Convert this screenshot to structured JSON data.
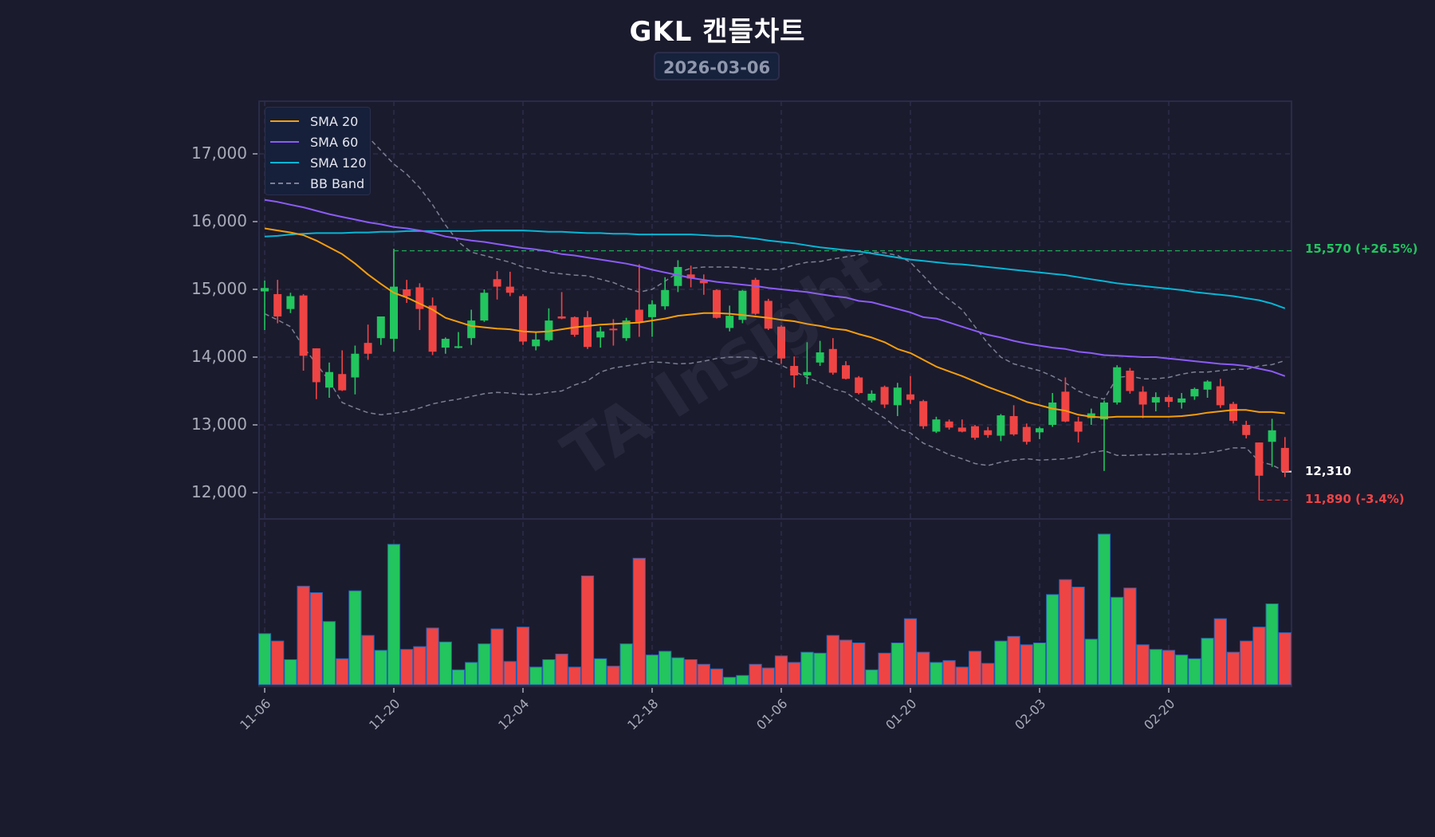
{
  "header": {
    "title": "GKL  캔들차트",
    "date": "2026-03-06"
  },
  "legend": [
    {
      "label": "SMA 20",
      "color": "#f59e0b",
      "style": "solid"
    },
    {
      "label": "SMA 60",
      "color": "#8b5cf6",
      "style": "solid"
    },
    {
      "label": "SMA 120",
      "color": "#06b6d4",
      "style": "solid"
    },
    {
      "label": "BB Band",
      "color": "#7c7f92",
      "style": "dashed"
    }
  ],
  "watermark": "TA Insight",
  "annotations": {
    "resistance": {
      "label": "15,570 (+26.5%)",
      "value": 15570,
      "color": "#22c55e"
    },
    "current": {
      "label": "12,310",
      "value": 12310,
      "color": "#ffffff"
    },
    "support": {
      "label": "11,890 (-3.4%)",
      "value": 11890,
      "color": "#ef4444"
    }
  },
  "colors": {
    "background": "#1b1b2e",
    "grid": "#2c2d4a",
    "up": "#22c55e",
    "down": "#ef4444",
    "axis_text": "#a9abb8"
  },
  "chart_data": {
    "type": "candlestick",
    "title": "GKL  캔들차트",
    "subtitle": "2026-03-06",
    "xlabel": "",
    "ylabel": "",
    "ylim": [
      11650,
      17800
    ],
    "y_ticks": [
      12000,
      13000,
      14000,
      15000,
      16000,
      17000
    ],
    "y_tick_labels": [
      "12,000",
      "13,000",
      "14,000",
      "15,000",
      "16,000",
      "17,000"
    ],
    "x_tick_labels": [
      "11-06",
      "11-20",
      "12-04",
      "12-18",
      "01-06",
      "01-20",
      "02-03",
      "02-20"
    ],
    "x_tick_index": [
      0,
      10,
      20,
      30,
      40,
      50,
      60,
      70
    ],
    "grid": true,
    "legend_position": "upper left",
    "candles": [
      [
        14970,
        15020,
        14400,
        15130
      ],
      [
        14930,
        14600,
        14500,
        15140
      ],
      [
        14710,
        14900,
        14650,
        14950
      ],
      [
        14910,
        14020,
        13800,
        14930
      ],
      [
        14130,
        13630,
        13380,
        14130
      ],
      [
        13550,
        13780,
        13400,
        13920
      ],
      [
        13750,
        13510,
        13500,
        14100
      ],
      [
        13700,
        14050,
        13450,
        14170
      ],
      [
        14210,
        14050,
        13960,
        14480
      ],
      [
        14280,
        14600,
        14180,
        14550
      ],
      [
        14270,
        15040,
        14080,
        15600
      ],
      [
        15000,
        14900,
        14800,
        15140
      ],
      [
        15030,
        14710,
        14400,
        15090
      ],
      [
        14760,
        14080,
        14030,
        14880
      ],
      [
        14140,
        14270,
        14050,
        14290
      ],
      [
        14140,
        14160,
        14130,
        14370
      ],
      [
        14280,
        14540,
        14180,
        14700
      ],
      [
        14540,
        14950,
        14520,
        15000
      ],
      [
        15150,
        15040,
        14850,
        15270
      ],
      [
        15040,
        14950,
        14900,
        15260
      ],
      [
        14900,
        14230,
        14180,
        14930
      ],
      [
        14160,
        14260,
        14100,
        14360
      ],
      [
        14250,
        14540,
        14230,
        14720
      ],
      [
        14600,
        14570,
        14560,
        14960
      ],
      [
        14590,
        14330,
        14300,
        14600
      ],
      [
        14590,
        14150,
        14120,
        14680
      ],
      [
        14290,
        14380,
        14140,
        14450
      ],
      [
        14420,
        14400,
        14170,
        14560
      ],
      [
        14280,
        14540,
        14240,
        14580
      ],
      [
        14700,
        14520,
        14300,
        15370
      ],
      [
        14590,
        14780,
        14300,
        14840
      ],
      [
        14750,
        14990,
        14700,
        15180
      ],
      [
        15050,
        15330,
        14960,
        15430
      ],
      [
        15220,
        15160,
        15030,
        15350
      ],
      [
        15130,
        15090,
        14920,
        15220
      ],
      [
        14990,
        14580,
        14570,
        15000
      ],
      [
        14430,
        14610,
        14380,
        14760
      ],
      [
        14550,
        14980,
        14500,
        14990
      ],
      [
        15140,
        14640,
        14620,
        15170
      ],
      [
        14830,
        14420,
        14400,
        14860
      ],
      [
        14450,
        13980,
        13900,
        14470
      ],
      [
        13870,
        13730,
        13550,
        14010
      ],
      [
        13730,
        13780,
        13600,
        14220
      ],
      [
        13920,
        14070,
        13870,
        14240
      ],
      [
        14120,
        13770,
        13740,
        14280
      ],
      [
        13880,
        13680,
        13670,
        13940
      ],
      [
        13700,
        13470,
        13450,
        13720
      ],
      [
        13360,
        13460,
        13330,
        13510
      ],
      [
        13560,
        13300,
        13250,
        13580
      ],
      [
        13290,
        13550,
        13130,
        13620
      ],
      [
        13450,
        13370,
        13310,
        13720
      ],
      [
        13350,
        12980,
        12940,
        13370
      ],
      [
        12900,
        13080,
        12880,
        13120
      ],
      [
        13050,
        12960,
        12930,
        13080
      ],
      [
        12960,
        12900,
        12890,
        13080
      ],
      [
        12980,
        12810,
        12780,
        13000
      ],
      [
        12920,
        12850,
        12810,
        12970
      ],
      [
        12840,
        13140,
        12760,
        13160
      ],
      [
        13130,
        12860,
        12840,
        13290
      ],
      [
        12970,
        12750,
        12710,
        13020
      ],
      [
        12890,
        12950,
        12790,
        12970
      ],
      [
        13000,
        13330,
        12970,
        13470
      ],
      [
        13490,
        13050,
        13040,
        13700
      ],
      [
        13050,
        12900,
        12740,
        13120
      ],
      [
        13100,
        13170,
        13000,
        13240
      ],
      [
        13080,
        13330,
        12320,
        13360
      ],
      [
        13330,
        13850,
        13300,
        13880
      ],
      [
        13800,
        13500,
        13460,
        13840
      ],
      [
        13490,
        13300,
        13100,
        13570
      ],
      [
        13330,
        13410,
        13200,
        13480
      ],
      [
        13410,
        13340,
        13260,
        13440
      ],
      [
        13330,
        13390,
        13240,
        13470
      ],
      [
        13420,
        13530,
        13370,
        13550
      ],
      [
        13520,
        13640,
        13400,
        13660
      ],
      [
        13570,
        13290,
        13250,
        13680
      ],
      [
        13310,
        13060,
        13020,
        13340
      ],
      [
        13000,
        12850,
        12800,
        13060
      ],
      [
        12740,
        12250,
        11890,
        12740
      ],
      [
        12750,
        12920,
        12380,
        13090
      ],
      [
        12660,
        12310,
        12230,
        12820
      ]
    ],
    "candle_format": [
      "open",
      "close",
      "low",
      "high"
    ],
    "volume": [
      55,
      47,
      27,
      106,
      99,
      68,
      28,
      101,
      53,
      37,
      151,
      38,
      41,
      61,
      46,
      16,
      24,
      44,
      60,
      25,
      62,
      19,
      27,
      33,
      19,
      117,
      28,
      20,
      44,
      136,
      32,
      36,
      29,
      27,
      22,
      17,
      8,
      10,
      22,
      18,
      31,
      24,
      35,
      34,
      53,
      48,
      45,
      16,
      34,
      45,
      71,
      35,
      24,
      26,
      19,
      36,
      23,
      47,
      52,
      43,
      45,
      97,
      113,
      105,
      49,
      162,
      94,
      104,
      43,
      38,
      37,
      32,
      28,
      50,
      71,
      35,
      47,
      62,
      87,
      56
    ],
    "volume_max": 162,
    "series": [
      {
        "name": "SMA 20",
        "values": [
          15900,
          15870,
          15840,
          15800,
          15720,
          15620,
          15520,
          15380,
          15220,
          15080,
          14950,
          14880,
          14790,
          14700,
          14580,
          14520,
          14460,
          14440,
          14420,
          14410,
          14380,
          14370,
          14380,
          14410,
          14440,
          14460,
          14480,
          14490,
          14500,
          14510,
          14540,
          14570,
          14610,
          14630,
          14650,
          14650,
          14640,
          14620,
          14600,
          14580,
          14550,
          14530,
          14490,
          14460,
          14420,
          14400,
          14340,
          14290,
          14220,
          14120,
          14060,
          13960,
          13860,
          13790,
          13720,
          13640,
          13560,
          13490,
          13420,
          13340,
          13290,
          13240,
          13210,
          13150,
          13120,
          13110,
          13120,
          13120,
          13120,
          13120,
          13120,
          13130,
          13150,
          13180,
          13200,
          13220,
          13220,
          13190,
          13190,
          13170
        ]
      },
      {
        "name": "SMA 60",
        "values": [
          16320,
          16290,
          16250,
          16210,
          16160,
          16110,
          16070,
          16030,
          15990,
          15960,
          15920,
          15900,
          15870,
          15830,
          15780,
          15750,
          15720,
          15700,
          15670,
          15640,
          15610,
          15590,
          15560,
          15520,
          15500,
          15470,
          15440,
          15410,
          15380,
          15340,
          15290,
          15250,
          15210,
          15170,
          15140,
          15110,
          15090,
          15070,
          15050,
          15020,
          15000,
          14980,
          14960,
          14930,
          14900,
          14880,
          14830,
          14810,
          14760,
          14710,
          14660,
          14590,
          14570,
          14510,
          14450,
          14390,
          14330,
          14290,
          14240,
          14200,
          14170,
          14140,
          14120,
          14080,
          14060,
          14030,
          14020,
          14010,
          14000,
          14000,
          13980,
          13960,
          13940,
          13920,
          13900,
          13890,
          13870,
          13830,
          13790,
          13720
        ]
      },
      {
        "name": "SMA 120",
        "values": [
          15780,
          15790,
          15810,
          15820,
          15830,
          15830,
          15830,
          15840,
          15840,
          15850,
          15850,
          15860,
          15860,
          15860,
          15860,
          15860,
          15860,
          15870,
          15870,
          15870,
          15870,
          15860,
          15850,
          15850,
          15840,
          15830,
          15830,
          15820,
          15820,
          15810,
          15810,
          15810,
          15810,
          15810,
          15800,
          15790,
          15790,
          15770,
          15750,
          15720,
          15700,
          15680,
          15650,
          15620,
          15600,
          15580,
          15560,
          15530,
          15500,
          15470,
          15440,
          15420,
          15400,
          15380,
          15370,
          15350,
          15330,
          15310,
          15290,
          15270,
          15250,
          15230,
          15210,
          15180,
          15150,
          15120,
          15090,
          15070,
          15050,
          15030,
          15010,
          14990,
          14960,
          14940,
          14920,
          14900,
          14870,
          14840,
          14790,
          14720
        ]
      },
      {
        "name": "BB Upper",
        "values": [
          16800,
          16850,
          16880,
          16950,
          17050,
          17200,
          17300,
          17350,
          17250,
          17050,
          16850,
          16700,
          16500,
          16250,
          15950,
          15700,
          15550,
          15500,
          15450,
          15400,
          15330,
          15300,
          15250,
          15230,
          15210,
          15200,
          15150,
          15100,
          15020,
          14960,
          15000,
          15120,
          15250,
          15310,
          15330,
          15330,
          15330,
          15320,
          15300,
          15290,
          15300,
          15360,
          15400,
          15410,
          15450,
          15480,
          15510,
          15550,
          15540,
          15500,
          15400,
          15200,
          15000,
          14850,
          14700,
          14450,
          14200,
          14000,
          13900,
          13850,
          13800,
          13720,
          13620,
          13500,
          13420,
          13380,
          13700,
          13720,
          13680,
          13680,
          13700,
          13750,
          13780,
          13780,
          13800,
          13820,
          13820,
          13870,
          13890,
          13950
        ]
      },
      {
        "name": "BB Lower",
        "values": [
          14640,
          14550,
          14450,
          14150,
          13900,
          13650,
          13330,
          13250,
          13180,
          13150,
          13170,
          13200,
          13250,
          13310,
          13350,
          13380,
          13420,
          13460,
          13480,
          13470,
          13450,
          13450,
          13480,
          13500,
          13590,
          13650,
          13780,
          13840,
          13870,
          13900,
          13930,
          13920,
          13900,
          13910,
          13940,
          13980,
          14000,
          14000,
          13990,
          13950,
          13880,
          13790,
          13700,
          13630,
          13530,
          13480,
          13350,
          13220,
          13100,
          12950,
          12880,
          12730,
          12650,
          12560,
          12500,
          12430,
          12400,
          12450,
          12480,
          12500,
          12480,
          12490,
          12500,
          12530,
          12590,
          12620,
          12550,
          12550,
          12560,
          12560,
          12570,
          12570,
          12570,
          12590,
          12620,
          12660,
          12660,
          12460,
          12410,
          12310
        ]
      }
    ],
    "reference_lines": [
      {
        "label": "15,570 (+26.5%)",
        "value": 15570,
        "color": "#22c55e",
        "start_index": 10
      },
      {
        "label": "11,890 (-3.4%)",
        "value": 11890,
        "color": "#ef4444",
        "start_index": 77
      },
      {
        "label": "12,310",
        "value": 12310,
        "color": "#ffffff"
      }
    ]
  }
}
